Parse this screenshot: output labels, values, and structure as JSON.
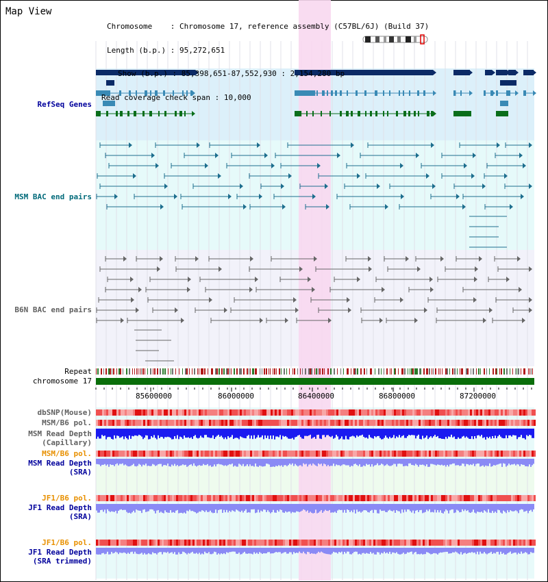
{
  "app": {
    "title": "Map View"
  },
  "header": {
    "chromosome_key": "Chromosome",
    "chromosome_value": "Chromosome 17, reference assembly (C57BL/6J) (Build 37)",
    "length_key": "Length (b.p.)",
    "length_value": "95,272,651",
    "show_key": "Show (b.p.)",
    "show_value": "85,398,651-87,552,930 : 2,154,280 bp",
    "coverage_key": "Read coverage check span",
    "coverage_value": "10,000"
  },
  "tracks": {
    "refseq_genes": "RefSeq Genes",
    "msm_bac": "MSM BAC end pairs",
    "b6n_bac": "B6N BAC end pairs",
    "repeat": "Repeat",
    "chromosome": "chromosome 17",
    "dbsnp": "dbSNP(Mouse)",
    "msm_b6_pol_1": "MSM/B6 pol.",
    "msm_read_depth_cap_line1": "MSM Read Depth",
    "msm_read_depth_cap_line2": "(Capillary)",
    "msm_b6_pol_2": "MSM/B6 pol.",
    "msm_read_depth_sra_line1": "MSM Read Depth",
    "msm_read_depth_sra_line2": "(SRA)",
    "jf1_b6_pol_1": "JF1/B6 pol.",
    "jf1_read_depth_sra_line1": "JF1 Read Depth",
    "jf1_read_depth_sra_line2": "(SRA)",
    "jf1_b6_pol_2": "JF1/B6 pol.",
    "jf1_read_depth_trim_line1": "JF1 Read Depth",
    "jf1_read_depth_trim_line2": "(SRA trimmed)"
  },
  "axis": {
    "ticks": [
      "85600000",
      "86000000",
      "86400000",
      "86800000",
      "87200000"
    ]
  },
  "colors": {
    "refseq_bg": "#dcf0fa",
    "msm_bg": "#e6fafa",
    "b6n_bg": "#f2f2fa",
    "highlight": "#f8d8f0",
    "gene_dark": "#0b2a66",
    "gene_mid": "#3a8ab5",
    "gene_green": "#0a6e1a",
    "msm_pair": "#1d6e8e",
    "b6n_pair": "#666666",
    "chrom_green": "#0a6e0a",
    "read_depth_blue": "#1a1af0",
    "read_depth_light": "#8a8af5",
    "pol_red": "#f03030",
    "label_blue": "#00009c",
    "label_teal": "#006a7a",
    "label_gray": "#606060",
    "label_orange": "#e89000"
  }
}
